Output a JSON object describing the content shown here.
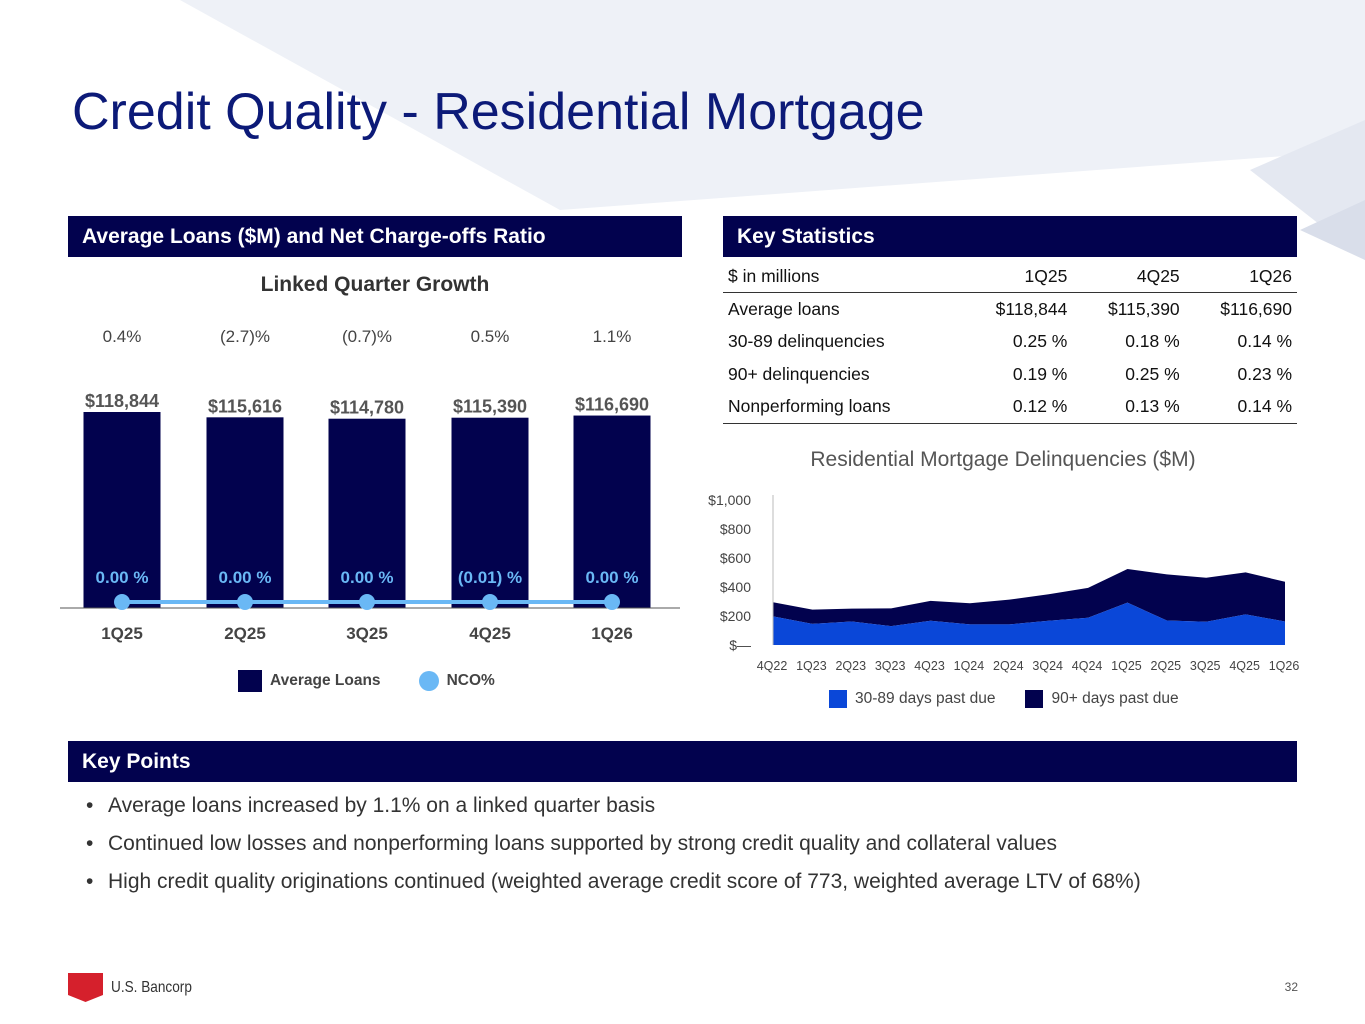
{
  "title": "Credit Quality - Residential Mortgage",
  "left_header": "Average Loans ($M) and Net Charge-offs Ratio",
  "right_header": "Key Statistics",
  "keypoints_header": "Key Points",
  "colors": {
    "navy": "#02024e",
    "nco": "#6ab8f5",
    "delinq_30_89": "#0a47d8",
    "delinq_90": "#02024e"
  },
  "chart_data": [
    {
      "type": "bar",
      "title": "Linked Quarter Growth",
      "categories": [
        "1Q25",
        "2Q25",
        "3Q25",
        "4Q25",
        "1Q26"
      ],
      "growth_labels": [
        "0.4%",
        "(2.7)%",
        "(0.7)%",
        "0.5%",
        "1.1%"
      ],
      "series": [
        {
          "name": "Average Loans",
          "values": [
            118844,
            115616,
            114780,
            115390,
            116690
          ],
          "labels": [
            "$118,844",
            "$115,616",
            "$114,780",
            "$115,390",
            "$116,690"
          ]
        },
        {
          "name": "NCO%",
          "type": "line",
          "values": [
            0.0,
            0.0,
            0.0,
            -0.01,
            0.0
          ],
          "labels": [
            "0.00 %",
            "0.00 %",
            "0.00 %",
            "(0.01) %",
            "0.00 %"
          ]
        }
      ],
      "legend": [
        "Average Loans",
        "NCO%"
      ],
      "legend_position": "bottom"
    },
    {
      "type": "area",
      "stacked": true,
      "title": "Residential Mortgage Delinquencies ($M)",
      "categories": [
        "4Q22",
        "1Q23",
        "2Q23",
        "3Q23",
        "4Q23",
        "1Q24",
        "2Q24",
        "3Q24",
        "4Q24",
        "1Q25",
        "2Q25",
        "3Q25",
        "4Q25",
        "1Q26"
      ],
      "yticks": [
        "$—",
        "$200",
        "$400",
        "$600",
        "$800",
        "$1,000"
      ],
      "ylim": [
        0,
        1000
      ],
      "series": [
        {
          "name": "30-89 days past due",
          "values": [
            197,
            146,
            162,
            130,
            167,
            142,
            142,
            167,
            188,
            292,
            169,
            160,
            211,
            162
          ]
        },
        {
          "name": "90+ days past due",
          "values": [
            98,
            98,
            89,
            123,
            137,
            146,
            171,
            183,
            206,
            232,
            318,
            304,
            290,
            274
          ]
        }
      ],
      "legend_position": "bottom"
    }
  ],
  "stats": {
    "columns": [
      "$ in millions",
      "1Q25",
      "4Q25",
      "1Q26"
    ],
    "rows": [
      [
        "Average loans",
        "$118,844",
        "$115,390",
        "$116,690"
      ],
      [
        "30-89 delinquencies",
        "0.25 %",
        "0.18 %",
        "0.14 %"
      ],
      [
        "90+ delinquencies",
        "0.19 %",
        "0.25 %",
        "0.23 %"
      ],
      [
        "Nonperforming loans",
        "0.12 %",
        "0.13 %",
        "0.14 %"
      ]
    ]
  },
  "key_points": [
    "Average loans increased by 1.1% on a linked quarter basis",
    "Continued low losses and nonperforming loans supported by strong credit quality and collateral values",
    "High credit quality originations continued (weighted average credit score of 773, weighted average LTV of 68%)"
  ],
  "logo_text": "U.S. Bancorp",
  "page_number": "32"
}
